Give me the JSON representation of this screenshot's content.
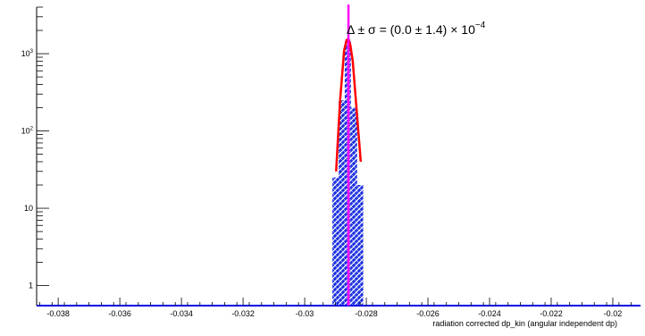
{
  "chart_data": {
    "type": "bar",
    "title": "",
    "xlabel": "radiation corrected dp_kin (angular independent dp)",
    "ylabel": "",
    "xlim": [
      -0.0387,
      -0.0191
    ],
    "ylim": [
      0.55,
      4000
    ],
    "yscale": "log",
    "grid": false,
    "legend": "none",
    "x_ticks": [
      {
        "value": -0.038,
        "label": "-0.038"
      },
      {
        "value": -0.036,
        "label": "-0.036"
      },
      {
        "value": -0.034,
        "label": "-0.034"
      },
      {
        "value": -0.032,
        "label": "-0.032"
      },
      {
        "value": -0.03,
        "label": "-0.03"
      },
      {
        "value": -0.028,
        "label": "-0.028"
      },
      {
        "value": -0.026,
        "label": "-0.026"
      },
      {
        "value": -0.024,
        "label": "-0.024"
      },
      {
        "value": -0.022,
        "label": "-0.022"
      },
      {
        "value": -0.02,
        "label": "-0.02"
      }
    ],
    "y_ticks": [
      {
        "value": 1,
        "base": "1",
        "exp": ""
      },
      {
        "value": 10,
        "base": "10",
        "exp": ""
      },
      {
        "value": 100,
        "base": "10",
        "exp": "2"
      },
      {
        "value": 1000,
        "base": "10",
        "exp": "3"
      }
    ],
    "bin_width": 0.0002,
    "bins": [
      {
        "x": -0.029,
        "count": 25
      },
      {
        "x": -0.0288,
        "count": 250
      },
      {
        "x": -0.0286,
        "count": 1500
      },
      {
        "x": -0.0284,
        "count": 200
      },
      {
        "x": -0.0282,
        "count": 20
      }
    ],
    "fit_curve": {
      "x": [
        -0.02898,
        -0.02885,
        -0.02872,
        -0.02864,
        -0.02858,
        -0.02852,
        -0.02844,
        -0.02832,
        -0.02818
      ],
      "y": [
        30,
        250,
        1100,
        1500,
        1550,
        1300,
        800,
        200,
        40
      ]
    },
    "mean_line": {
      "x": -0.02858
    },
    "annotation": {
      "text": "Δ ± σ = (0.0 ± 1.4) × 10",
      "exponent": "−4"
    },
    "colors": {
      "fill_pattern": "#1a2ee0",
      "fit": "#ff0000",
      "mean": "#ff00ff",
      "baseline": "#0000ff",
      "axis": "#000000"
    }
  }
}
